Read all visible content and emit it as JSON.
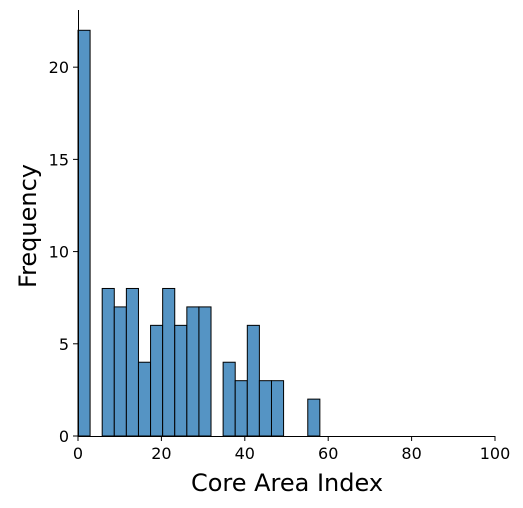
{
  "chart_data": {
    "type": "bar",
    "subtype": "histogram",
    "xlabel": "Core Area Index",
    "ylabel": "Frequency",
    "xlim": [
      0,
      100
    ],
    "ylim": [
      0,
      23.1
    ],
    "x_ticks": [
      0,
      20,
      40,
      60,
      80,
      100
    ],
    "y_ticks": [
      0,
      5,
      10,
      15,
      20
    ],
    "bin_width": 2.9,
    "bins": [
      {
        "start": 0.0,
        "end": 2.9,
        "count": 22
      },
      {
        "start": 5.8,
        "end": 8.7,
        "count": 8
      },
      {
        "start": 8.7,
        "end": 11.6,
        "count": 7
      },
      {
        "start": 11.6,
        "end": 14.5,
        "count": 8
      },
      {
        "start": 14.5,
        "end": 17.4,
        "count": 4
      },
      {
        "start": 17.4,
        "end": 20.3,
        "count": 6
      },
      {
        "start": 20.3,
        "end": 23.2,
        "count": 8
      },
      {
        "start": 23.2,
        "end": 26.1,
        "count": 6
      },
      {
        "start": 26.1,
        "end": 29.0,
        "count": 7
      },
      {
        "start": 29.0,
        "end": 31.9,
        "count": 7
      },
      {
        "start": 34.8,
        "end": 37.7,
        "count": 4
      },
      {
        "start": 37.7,
        "end": 40.6,
        "count": 3
      },
      {
        "start": 40.6,
        "end": 43.5,
        "count": 6
      },
      {
        "start": 43.5,
        "end": 46.4,
        "count": 3
      },
      {
        "start": 46.4,
        "end": 49.3,
        "count": 3
      },
      {
        "start": 55.1,
        "end": 58.0,
        "count": 2
      }
    ],
    "bar_color": "#5594c4",
    "edge_color": "#000000",
    "grid": false,
    "legend": "none"
  }
}
